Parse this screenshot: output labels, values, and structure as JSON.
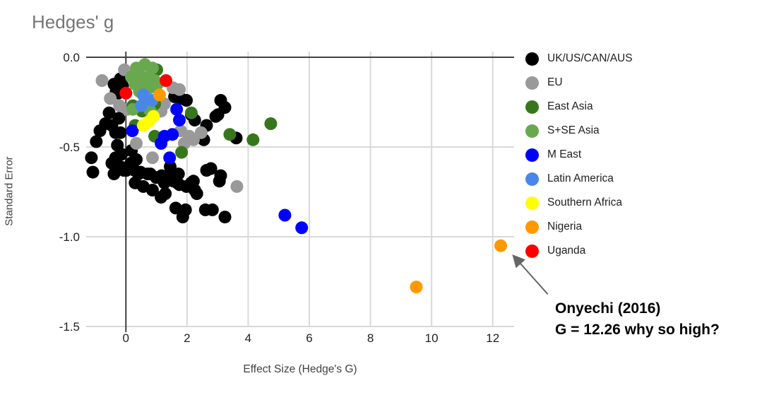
{
  "title": "Hedges' g",
  "axes": {
    "x_label": "Effect Size (Hedge's G)",
    "y_label": "Standard Error"
  },
  "annotation": {
    "line1": "Onyechi (2016)",
    "line2": "G = 12.26 why so high?",
    "arrow": {
      "from": [
        13.8,
        -1.32
      ],
      "to": [
        12.7,
        -1.11
      ],
      "color": "#666666"
    }
  },
  "chart_data": {
    "type": "scatter",
    "title": "Hedges' g",
    "xlabel": "Effect Size (Hedge's G)",
    "ylabel": "Standard Error",
    "xlim": [
      -1.3,
      12.7
    ],
    "ylim": [
      -1.5,
      0
    ],
    "x_ticks": [
      0,
      2,
      4,
      6,
      8,
      10,
      12
    ],
    "y_ticks": [
      {
        "value": 0,
        "label": "0.0"
      },
      {
        "value": -0.5,
        "label": "-0.5"
      },
      {
        "value": -1.0,
        "label": "-1.0"
      },
      {
        "value": -1.5,
        "label": "-1.5"
      }
    ],
    "grid": true,
    "legend_position": "right",
    "point_radius": 9,
    "colors": {
      "gridline": "#d9d9d9",
      "axis_line": "#424242",
      "tick_label": "#212121"
    },
    "series": [
      {
        "name": "UK/US/CAN/AUS",
        "color": "#000000",
        "points": [
          [
            -0.39,
            -0.15
          ],
          [
            -0.25,
            -0.2
          ],
          [
            -0.11,
            -0.16
          ],
          [
            -0.18,
            -0.12
          ],
          [
            -0.32,
            -0.19
          ],
          [
            -0.55,
            -0.31
          ],
          [
            -0.67,
            -0.37
          ],
          [
            -0.46,
            -0.38
          ],
          [
            -0.23,
            -0.34
          ],
          [
            -0.85,
            -0.41
          ],
          [
            -0.34,
            -0.42
          ],
          [
            -0.18,
            -0.42
          ],
          [
            -0.97,
            -0.47
          ],
          [
            -0.28,
            -0.49
          ],
          [
            -0.14,
            -0.54
          ],
          [
            0.18,
            -0.52
          ],
          [
            -0.34,
            -0.56
          ],
          [
            -1.13,
            -0.56
          ],
          [
            0.16,
            -0.59
          ],
          [
            -0.46,
            -0.59
          ],
          [
            -0.18,
            -0.61
          ],
          [
            -0.07,
            -0.63
          ],
          [
            -0.39,
            -0.65
          ],
          [
            -1.08,
            -0.64
          ],
          [
            0.28,
            -0.63
          ],
          [
            0.34,
            -0.57
          ],
          [
            0.02,
            -0.63
          ],
          [
            0.48,
            -0.64
          ],
          [
            0.8,
            -0.65
          ],
          [
            1.45,
            -0.61
          ],
          [
            1.72,
            -0.65
          ],
          [
            1.26,
            -0.67
          ],
          [
            1.68,
            -0.7
          ],
          [
            2.21,
            -0.69
          ],
          [
            2.64,
            -0.63
          ],
          [
            0.41,
            -0.65
          ],
          [
            0.71,
            -0.65
          ],
          [
            0.99,
            -0.67
          ],
          [
            1.26,
            -0.7
          ],
          [
            1.52,
            -0.67
          ],
          [
            1.75,
            -0.71
          ],
          [
            0.87,
            -0.74
          ],
          [
            0.57,
            -0.72
          ],
          [
            0.3,
            -0.7
          ],
          [
            1.29,
            -0.76
          ],
          [
            1.15,
            -0.78
          ],
          [
            1.63,
            -0.84
          ],
          [
            1.86,
            -0.89
          ],
          [
            1.95,
            -0.85
          ],
          [
            2.6,
            -0.85
          ],
          [
            2.83,
            -0.85
          ],
          [
            3.24,
            -0.89
          ],
          [
            3.06,
            -0.69
          ],
          [
            2.78,
            -0.62
          ],
          [
            3.1,
            -0.66
          ],
          [
            2.14,
            -0.7
          ],
          [
            2.25,
            -0.74
          ],
          [
            1.98,
            -0.72
          ],
          [
            2.32,
            -0.76
          ],
          [
            1.17,
            -0.66
          ],
          [
            1.56,
            -0.69
          ],
          [
            1.59,
            -0.22
          ],
          [
            1.79,
            -0.23
          ],
          [
            1.98,
            -0.24
          ],
          [
            2.14,
            -0.32
          ],
          [
            2.25,
            -0.35
          ],
          [
            2.64,
            -0.38
          ],
          [
            3.01,
            -0.32
          ],
          [
            3.1,
            -0.24
          ],
          [
            3.24,
            -0.28
          ],
          [
            3.61,
            -0.45
          ],
          [
            2.94,
            -0.33
          ],
          [
            2.55,
            -0.46
          ]
        ]
      },
      {
        "name": "EU",
        "color": "#999999",
        "points": [
          [
            -0.78,
            -0.13
          ],
          [
            -0.05,
            -0.07
          ],
          [
            1.54,
            -0.17
          ],
          [
            1.75,
            -0.18
          ],
          [
            -0.51,
            -0.23
          ],
          [
            -0.21,
            -0.27
          ],
          [
            0.05,
            -0.29
          ],
          [
            0.46,
            -0.15
          ],
          [
            1.15,
            -0.3
          ],
          [
            1.26,
            -0.26
          ],
          [
            0.34,
            -0.48
          ],
          [
            0.87,
            -0.56
          ],
          [
            1.91,
            -0.48
          ],
          [
            2.07,
            -0.44
          ],
          [
            2.46,
            -0.42
          ],
          [
            2.21,
            -0.46
          ],
          [
            1.79,
            -0.41
          ],
          [
            3.63,
            -0.72
          ]
        ]
      },
      {
        "name": "East Asia",
        "color": "#38761d",
        "points": [
          [
            1.01,
            -0.07
          ],
          [
            0.94,
            -0.26
          ],
          [
            0.23,
            -0.27
          ],
          [
            0.53,
            -0.3
          ],
          [
            0.3,
            -0.38
          ],
          [
            2.14,
            -0.31
          ],
          [
            1.82,
            -0.53
          ],
          [
            0.94,
            -0.44
          ],
          [
            3.4,
            -0.43
          ],
          [
            4.16,
            -0.46
          ],
          [
            4.74,
            -0.37
          ]
        ]
      },
      {
        "name": "S+SE Asia",
        "color": "#6aa84f",
        "points": [
          [
            0.34,
            -0.06
          ],
          [
            0.62,
            -0.04
          ],
          [
            0.87,
            -0.06
          ],
          [
            0.18,
            -0.11
          ],
          [
            0.46,
            -0.1
          ],
          [
            0.71,
            -0.11
          ],
          [
            0.94,
            -0.13
          ],
          [
            0.3,
            -0.15
          ],
          [
            0.55,
            -0.16
          ],
          [
            0.78,
            -0.17
          ],
          [
            1.03,
            -0.15
          ],
          [
            0.44,
            -0.19
          ],
          [
            0.23,
            -0.29
          ],
          [
            0.8,
            -0.3
          ]
        ]
      },
      {
        "name": "M East",
        "color": "#0000ff",
        "points": [
          [
            1.66,
            -0.29
          ],
          [
            1.75,
            -0.35
          ],
          [
            0.21,
            -0.41
          ],
          [
            1.26,
            -0.44
          ],
          [
            1.52,
            -0.43
          ],
          [
            1.15,
            -0.48
          ],
          [
            1.43,
            -0.56
          ],
          [
            5.2,
            -0.88
          ],
          [
            5.75,
            -0.95
          ]
        ]
      },
      {
        "name": "Latin America",
        "color": "#4a86e8",
        "points": [
          [
            0.57,
            -0.21
          ],
          [
            0.85,
            -0.24
          ],
          [
            0.51,
            -0.27
          ]
        ]
      },
      {
        "name": "Southern Africa",
        "color": "#ffff00",
        "points": [
          [
            0.9,
            -0.33
          ],
          [
            0.74,
            -0.36
          ],
          [
            0.57,
            -0.38
          ]
        ]
      },
      {
        "name": "Nigeria",
        "color": "#ff9900",
        "points": [
          [
            1.1,
            -0.21
          ],
          [
            9.5,
            -1.28
          ],
          [
            12.26,
            -1.05
          ]
        ]
      },
      {
        "name": "Uganda",
        "color": "#ff0000",
        "points": [
          [
            0.0,
            -0.2
          ],
          [
            1.31,
            -0.13
          ]
        ]
      }
    ]
  }
}
